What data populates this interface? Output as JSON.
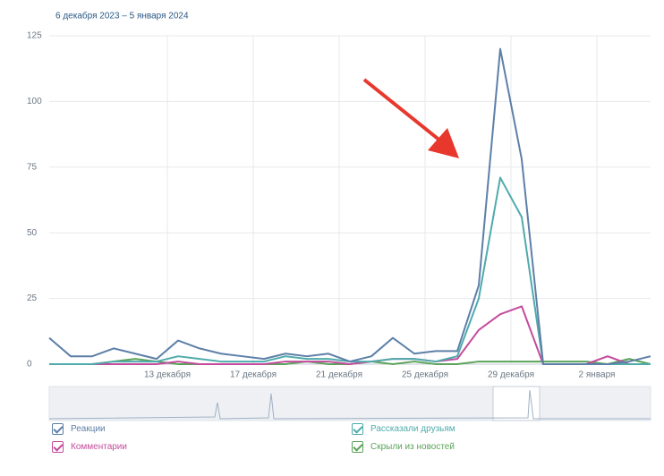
{
  "chart_data": {
    "type": "line",
    "subtitle": "6 декабря 2023 – 5 января 2024",
    "categories": [
      null,
      null,
      null,
      null,
      null,
      "13 декабря",
      null,
      null,
      null,
      "17 декабря",
      null,
      null,
      null,
      "21 декабря",
      null,
      null,
      null,
      "25 декабря",
      null,
      null,
      null,
      "29 декабря",
      null,
      null,
      null,
      "2 января",
      null,
      null,
      null
    ],
    "series": [
      {
        "name": "Реакции",
        "color": "#5d7fa8",
        "values": [
          10,
          3,
          3,
          6,
          4,
          2,
          9,
          6,
          4,
          3,
          2,
          4,
          3,
          4,
          1,
          3,
          10,
          4,
          5,
          5,
          30,
          120,
          78,
          0,
          0,
          0,
          0,
          1,
          3
        ]
      },
      {
        "name": "Рассказали друзьям",
        "color": "#4fabab",
        "values": [
          0,
          0,
          0,
          1,
          1,
          1,
          3,
          2,
          1,
          1,
          1,
          3,
          2,
          2,
          1,
          1,
          2,
          2,
          1,
          3,
          25,
          71,
          56,
          0,
          0,
          0,
          0,
          0,
          0
        ]
      },
      {
        "name": "Комментарии",
        "color": "#c44b9c",
        "values": [
          0,
          0,
          0,
          0,
          0,
          0,
          1,
          0,
          0,
          0,
          0,
          1,
          1,
          1,
          0,
          1,
          2,
          2,
          1,
          2,
          13,
          19,
          22,
          0,
          0,
          0,
          3,
          0,
          0
        ]
      },
      {
        "name": "Скрыли из новостей",
        "color": "#5ba35b",
        "values": [
          0,
          0,
          0,
          1,
          2,
          1,
          0,
          0,
          0,
          0,
          0,
          0,
          1,
          0,
          0,
          1,
          0,
          1,
          0,
          0,
          1,
          1,
          1,
          1,
          1,
          1,
          0,
          2,
          0
        ]
      }
    ],
    "ylim": [
      0,
      125
    ],
    "yticks": [
      0,
      25,
      50,
      75,
      100,
      125
    ],
    "grid": true
  }
}
